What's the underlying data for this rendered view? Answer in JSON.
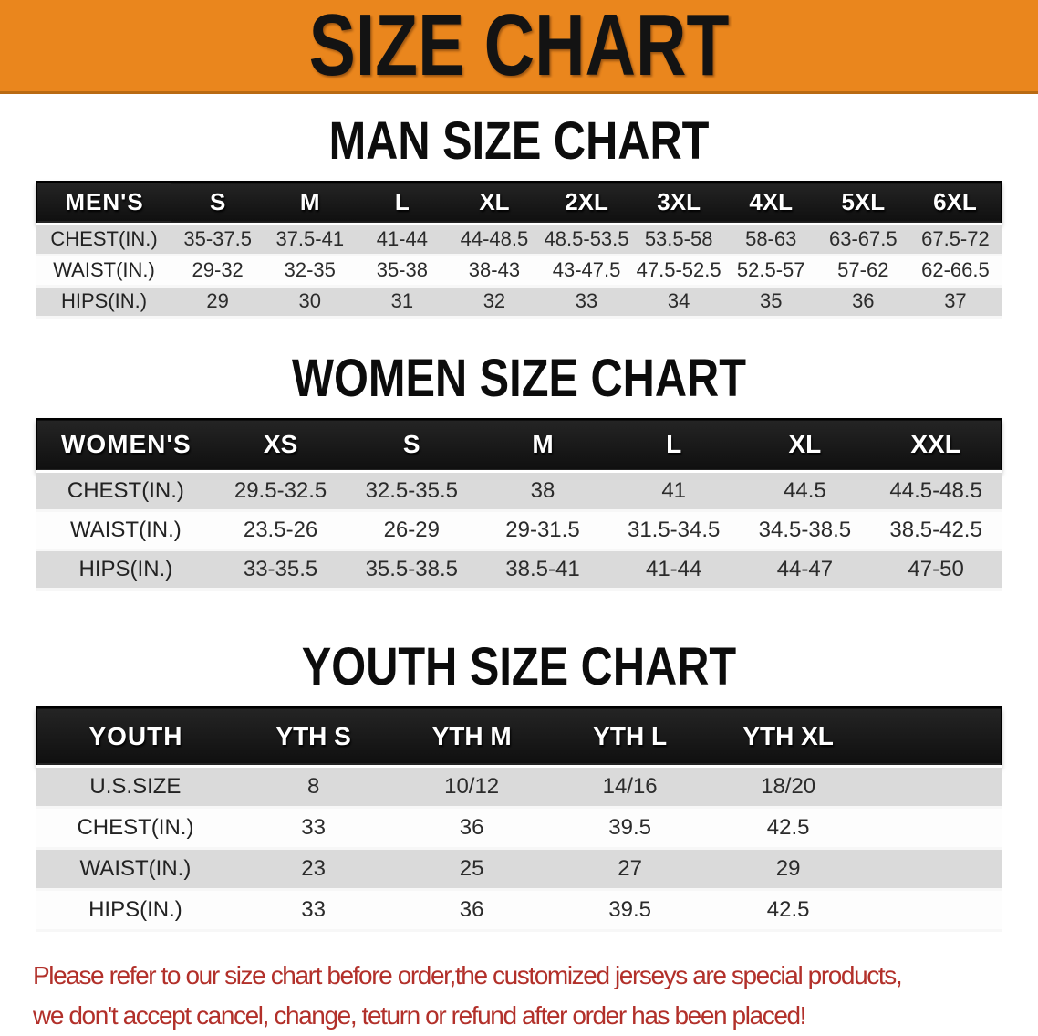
{
  "banner": {
    "title": "SIZE CHART",
    "bg_color": "#EA861D",
    "text_color": "#131313"
  },
  "sections": [
    {
      "id": "men",
      "title": "MAN SIZE CHART",
      "header_label": "MEN'S",
      "columns": [
        "S",
        "M",
        "L",
        "XL",
        "2XL",
        "3XL",
        "4XL",
        "5XL",
        "6XL"
      ],
      "rows": [
        {
          "label": "CHEST(IN.)",
          "values": [
            "35-37.5",
            "37.5-41",
            "41-44",
            "44-48.5",
            "48.5-53.5",
            "53.5-58",
            "58-63",
            "63-67.5",
            "67.5-72"
          ]
        },
        {
          "label": "WAIST(IN.)",
          "values": [
            "29-32",
            "32-35",
            "35-38",
            "38-43",
            "43-47.5",
            "47.5-52.5",
            "52.5-57",
            "57-62",
            "62-66.5"
          ]
        },
        {
          "label": "HIPS(IN.)",
          "values": [
            "29",
            "30",
            "31",
            "32",
            "33",
            "34",
            "35",
            "36",
            "37"
          ]
        }
      ]
    },
    {
      "id": "women",
      "title": "WOMEN SIZE CHART",
      "header_label": "WOMEN'S",
      "columns": [
        "XS",
        "S",
        "M",
        "L",
        "XL",
        "XXL"
      ],
      "rows": [
        {
          "label": "CHEST(IN.)",
          "values": [
            "29.5-32.5",
            "32.5-35.5",
            "38",
            "41",
            "44.5",
            "44.5-48.5"
          ]
        },
        {
          "label": "WAIST(IN.)",
          "values": [
            "23.5-26",
            "26-29",
            "29-31.5",
            "31.5-34.5",
            "34.5-38.5",
            "38.5-42.5"
          ]
        },
        {
          "label": "HIPS(IN.)",
          "values": [
            "33-35.5",
            "35.5-38.5",
            "38.5-41",
            "41-44",
            "44-47",
            "47-50"
          ]
        }
      ]
    },
    {
      "id": "youth",
      "title": "YOUTH SIZE CHART",
      "header_label": "YOUTH",
      "columns": [
        "YTH S",
        "YTH M",
        "YTH L",
        "YTH XL"
      ],
      "rows": [
        {
          "label": "U.S.SIZE",
          "values": [
            "8",
            "10/12",
            "14/16",
            "18/20"
          ]
        },
        {
          "label": "CHEST(IN.)",
          "values": [
            "33",
            "36",
            "39.5",
            "42.5"
          ]
        },
        {
          "label": "WAIST(IN.)",
          "values": [
            "23",
            "25",
            "27",
            "29"
          ]
        },
        {
          "label": "HIPS(IN.)",
          "values": [
            "33",
            "36",
            "39.5",
            "42.5"
          ]
        }
      ]
    }
  ],
  "disclaimer": {
    "line1": "Please refer to our size chart before order,the customized jerseys are special products,",
    "line2": "we don't accept cancel, change, teturn or refund after order has been placed!",
    "text_color": "#B2302A"
  },
  "colors": {
    "banner_orange": "#EA861D",
    "table_header_black": "#141414",
    "row_gray": "#DADADA",
    "row_white": "#FDFDFD",
    "disclaimer_red": "#B2302A"
  }
}
